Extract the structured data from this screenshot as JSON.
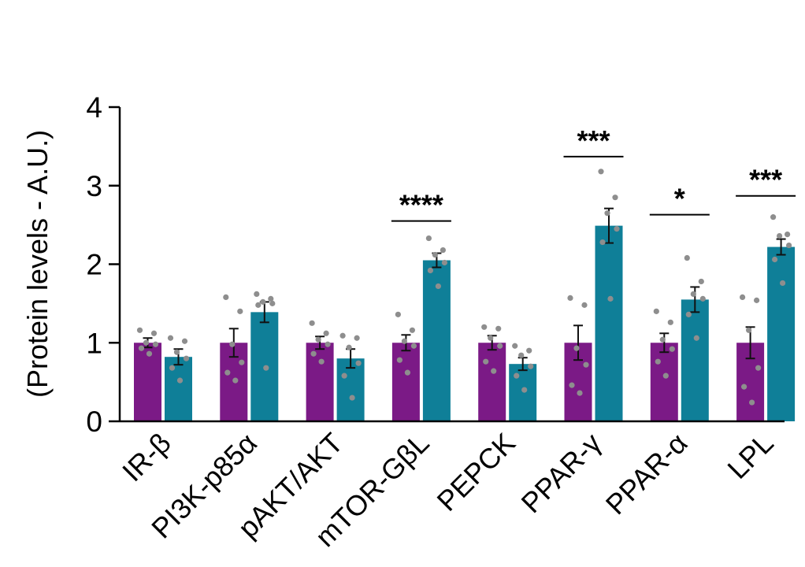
{
  "chart_data": {
    "type": "bar",
    "ylabel": "(Protein levels - A.U.)",
    "ylim": [
      0,
      4
    ],
    "yticks": [
      "0",
      "1",
      "2",
      "3",
      "4"
    ],
    "categories": [
      "IR-β",
      "PI3K-p85α",
      "pAKT/AKT",
      "mTOR-GβL",
      "PEPCK",
      "PPAR-γ",
      "PPAR-α",
      "LPL"
    ],
    "colors": [
      "#7b1a86",
      "#0f7f98"
    ],
    "series": [
      {
        "color": "#7b1a86",
        "values": [
          1.0,
          1.0,
          1.0,
          1.0,
          1.0,
          1.0,
          1.0,
          1.0
        ],
        "errors": [
          0.06,
          0.18,
          0.08,
          0.1,
          0.09,
          0.22,
          0.12,
          0.2
        ],
        "points": [
          [
            1.16,
            1.12,
            1.0,
            0.98,
            0.93,
            0.86
          ],
          [
            1.58,
            1.4,
            0.98,
            0.75,
            0.62,
            0.52
          ],
          [
            1.25,
            1.12,
            1.04,
            0.98,
            0.86,
            0.76
          ],
          [
            1.36,
            1.16,
            1.02,
            0.96,
            0.78,
            0.62
          ],
          [
            1.2,
            1.18,
            1.06,
            0.96,
            0.76,
            0.64
          ],
          [
            1.57,
            1.48,
            0.93,
            0.72,
            0.46,
            0.36
          ],
          [
            1.4,
            1.26,
            1.04,
            0.92,
            0.76,
            0.58
          ],
          [
            1.58,
            1.54,
            1.16,
            0.68,
            0.44,
            0.24
          ]
        ]
      },
      {
        "color": "#0f7f98",
        "values": [
          0.82,
          1.39,
          0.8,
          2.05,
          0.73,
          2.49,
          1.55,
          2.22
        ],
        "errors": [
          0.1,
          0.13,
          0.12,
          0.09,
          0.08,
          0.22,
          0.16,
          0.1
        ],
        "points": [
          [
            1.06,
            1.02,
            0.88,
            0.8,
            0.68,
            0.52
          ],
          [
            1.62,
            1.56,
            1.52,
            1.5,
            1.48,
            0.68
          ],
          [
            1.09,
            1.06,
            0.94,
            0.74,
            0.58,
            0.3
          ],
          [
            2.33,
            2.18,
            2.12,
            2.02,
            1.92,
            1.72
          ],
          [
            0.96,
            0.9,
            0.84,
            0.7,
            0.58,
            0.4
          ],
          [
            3.18,
            2.85,
            2.65,
            2.45,
            2.28,
            1.56
          ],
          [
            2.08,
            1.78,
            1.62,
            1.56,
            1.36,
            1.06
          ],
          [
            2.6,
            2.38,
            2.36,
            2.24,
            2.06,
            1.76
          ]
        ]
      }
    ],
    "significance": [
      {
        "category_index": 3,
        "label": "****",
        "y": 2.55
      },
      {
        "category_index": 5,
        "label": "***",
        "y": 3.37
      },
      {
        "category_index": 6,
        "label": "*",
        "y": 2.63
      },
      {
        "category_index": 7,
        "label": "***",
        "y": 2.87
      }
    ]
  }
}
